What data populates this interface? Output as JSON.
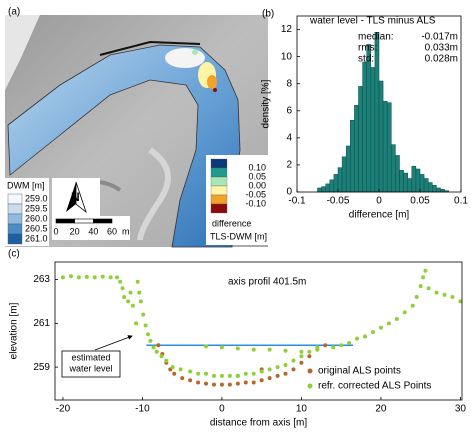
{
  "map": {
    "panel_label": "(a)",
    "dwm_legend": {
      "title": "DWM [m]",
      "entries": [
        {
          "label": "259.0",
          "color": "#f4f7fb"
        },
        {
          "label": "259.5",
          "color": "#c9dcee"
        },
        {
          "label": "260.0",
          "color": "#8fbbe0"
        },
        {
          "label": "260.5",
          "color": "#4a8cc8"
        },
        {
          "label": "261.0",
          "color": "#1d5fa0"
        }
      ]
    },
    "difference_legend": {
      "title": [
        "difference",
        "TLS-DWM [m]"
      ],
      "labels": [
        "0.10",
        "0.05",
        "0.00",
        "-0.05",
        "-0.10"
      ],
      "colors": [
        "#0b3a78",
        "#1f9a8c",
        "#a8e6b5",
        "#fff3a8",
        "#f2a227",
        "#8e0b0b"
      ]
    },
    "north": "N",
    "scale_bar": {
      "ticks": [
        0,
        20,
        40,
        60
      ],
      "unit": "m"
    }
  },
  "chart_data": [
    {
      "type": "histogram",
      "panel_label": "(b)",
      "title": "water level - TLS minus ALS",
      "x_label": "difference [m]",
      "y_label": "density [%]",
      "color": "#1c7f78",
      "stats": [
        {
          "label": "median:",
          "value": "-0.017m"
        },
        {
          "label": "rms:",
          "value": "0.033m"
        },
        {
          "label": "std:",
          "value": "0.028m"
        }
      ],
      "bins": [
        -0.075,
        -0.07,
        -0.065,
        -0.06,
        -0.055,
        -0.05,
        -0.045,
        -0.04,
        -0.035,
        -0.03,
        -0.025,
        -0.02,
        -0.015,
        -0.01,
        -0.005,
        0,
        0.005,
        0.01,
        0.015,
        0.02,
        0.025,
        0.03,
        0.035,
        0.04,
        0.045,
        0.05,
        0.055,
        0.06,
        0.065,
        0.07,
        0.075,
        0.08,
        0.085
      ],
      "values": [
        0.3,
        0.4,
        0.6,
        0.9,
        1.3,
        1.8,
        2.6,
        3.4,
        5.3,
        6.4,
        7.8,
        9.6,
        10.9,
        9.2,
        11.8,
        8.2,
        6.7,
        6.6,
        3.5,
        2.7,
        1.6,
        1.4,
        1.0,
        1.9,
        1.7,
        1.3,
        1.0,
        0.7,
        0.5,
        0.3,
        0.2,
        0.1
      ],
      "xlim": [
        -0.1,
        0.1
      ],
      "xticks": [
        -0.1,
        -0.05,
        0,
        0.05,
        0.1
      ],
      "ylim": [
        0,
        13
      ],
      "yticks": [
        0,
        2,
        4,
        6,
        8,
        10,
        12
      ]
    },
    {
      "type": "scatter",
      "panel_label": "(c)",
      "title": "axis profil 401.5m",
      "x_label": "distance from axis [m]",
      "y_label": "elevation [m]",
      "xlim": [
        -21,
        30.2
      ],
      "xticks": [
        -20,
        -10,
        0,
        10,
        20,
        30
      ],
      "ylim": [
        257.5,
        263.8
      ],
      "yticks": [
        259,
        261,
        263
      ],
      "reference_line": {
        "value": 260.0,
        "x": [
          -9.5,
          16.5
        ],
        "color": "#2a8fe0"
      },
      "annotation": [
        "estimated",
        "water level"
      ],
      "series": [
        {
          "name": "original ALS points",
          "color": "#b8662a",
          "x": [
            -8,
            -7.5,
            -7,
            -6.5,
            -6,
            -5,
            -4,
            -3,
            -2,
            -1,
            0,
            1,
            2,
            3,
            4,
            5,
            6,
            7,
            8,
            9,
            10,
            11,
            12,
            13,
            2,
            5
          ],
          "values": [
            260.0,
            259.6,
            259.2,
            258.9,
            258.7,
            258.5,
            258.4,
            258.3,
            258.25,
            258.2,
            258.2,
            258.2,
            258.25,
            258.3,
            258.3,
            258.4,
            258.5,
            258.6,
            258.7,
            258.9,
            259.2,
            259.5,
            259.8,
            260.0,
            258.6,
            258.9
          ]
        },
        {
          "name": "refr. corrected ALS Points",
          "color": "#8fcf3a",
          "x": [
            -20,
            -19,
            -18,
            -17,
            -16,
            -15,
            -14,
            -13.2,
            -12.8,
            -12.5,
            -12.3,
            -11.8,
            -11.5,
            -11.2,
            -10.8,
            -10.6,
            -10.4,
            -10.2,
            -9.9,
            -9.6,
            -9.3,
            -9,
            -8.6,
            -8.2,
            -7.6,
            -7,
            -6.2,
            -5.2,
            -4,
            -3,
            -2,
            -1,
            0,
            1,
            2,
            3,
            4,
            5,
            6,
            7,
            8,
            9,
            10,
            11,
            12,
            -2,
            0,
            2,
            4,
            6,
            8,
            10,
            12,
            14,
            15,
            16,
            17,
            18,
            19,
            20,
            21,
            22,
            23,
            24,
            24.5,
            25,
            25.3,
            25.6,
            26,
            27,
            28,
            29,
            30
          ],
          "values": [
            263.1,
            263.15,
            263.1,
            263.12,
            263.1,
            263.13,
            263.1,
            263.1,
            262.9,
            262.6,
            262.2,
            262.0,
            262.4,
            261.8,
            261.0,
            262.9,
            262.4,
            262.0,
            261.4,
            260.9,
            260.5,
            260.2,
            259.9,
            259.7,
            259.5,
            259.3,
            259.0,
            258.9,
            258.8,
            258.7,
            258.7,
            258.6,
            258.6,
            258.6,
            258.6,
            258.7,
            258.7,
            258.8,
            258.9,
            259.0,
            259.1,
            259.3,
            259.5,
            259.7,
            259.9,
            259.95,
            259.9,
            259.85,
            259.8,
            259.8,
            259.75,
            259.7,
            259.8,
            259.9,
            260.0,
            260.1,
            260.3,
            260.4,
            260.6,
            260.8,
            261.0,
            261.2,
            261.5,
            261.8,
            262.2,
            262.7,
            263.1,
            263.4,
            262.6,
            262.4,
            262.3,
            262.2,
            262.0
          ]
        }
      ]
    }
  ]
}
